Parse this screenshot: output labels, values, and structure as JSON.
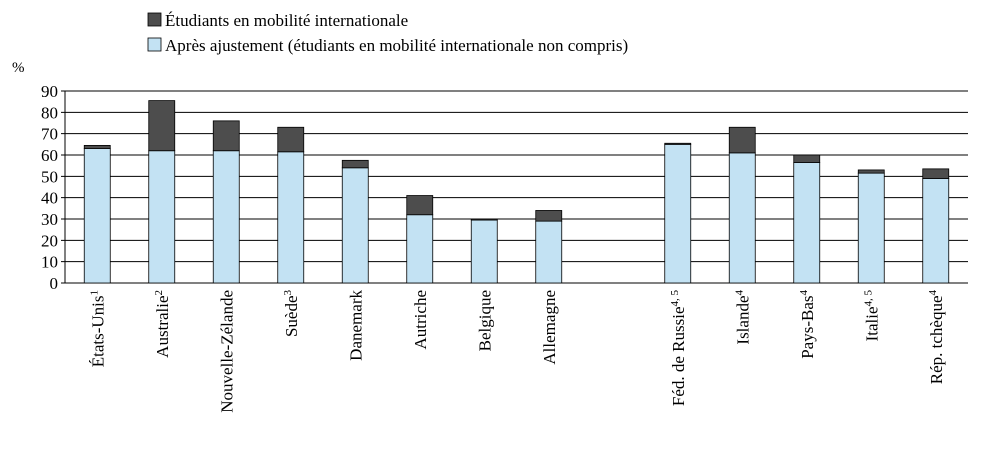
{
  "chart_data": {
    "type": "stacked_bar",
    "y_label": "%",
    "categories": [
      "États-Unis",
      "Australie",
      "Nouvelle-Zélande",
      "Suède",
      "Danemark",
      "Autriche",
      "Belgique",
      "Allemagne",
      null,
      "Féd. de Russie",
      "Islande",
      "Pays-Bas",
      "Italie",
      "Rép. tchèque"
    ],
    "category_notes": [
      "1",
      "2",
      null,
      "3",
      null,
      null,
      null,
      null,
      null,
      "4, 5",
      "4",
      "4",
      "4, 5",
      "4"
    ],
    "series": [
      {
        "name": "Étudiants en mobilité internationale",
        "color": "#4d4d4d",
        "values": [
          1.5,
          23.5,
          14,
          11.5,
          3.5,
          9,
          0.5,
          5,
          null,
          0.5,
          12,
          3.5,
          1.5,
          4.5
        ]
      },
      {
        "name": "Après ajustement (étudiants en mobilité internationale non compris)",
        "color": "#c3e2f3",
        "values": [
          63,
          62,
          62,
          61.5,
          54,
          32,
          29.5,
          29,
          null,
          65,
          61,
          56.5,
          51.5,
          49
        ]
      }
    ],
    "ylim": [
      0,
      90
    ],
    "yticks": [
      0,
      10,
      20,
      30,
      40,
      50,
      60,
      70,
      80,
      90
    ],
    "grid": true
  }
}
